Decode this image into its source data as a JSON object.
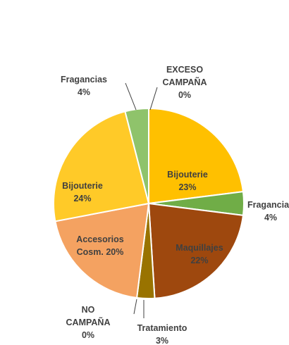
{
  "chart_data": {
    "type": "pie",
    "title": "",
    "slices": [
      {
        "category": "EXCESO CAMPAÑA",
        "percent_label": "0%",
        "value": 0,
        "color": "#FFC000"
      },
      {
        "category": "Bijouterie",
        "percent_label": "23%",
        "value": 23,
        "color": "#FFC000"
      },
      {
        "category": "Fragancias",
        "percent_label": "4%",
        "value": 4,
        "color": "#70AD47"
      },
      {
        "category": "Maquillajes",
        "percent_label": "22%",
        "value": 22,
        "color": "#9E480E"
      },
      {
        "category": "Tratamiento",
        "percent_label": "3%",
        "value": 3,
        "color": "#997300"
      },
      {
        "category": "NO CAMPAÑA",
        "percent_label": "0%",
        "value": 0,
        "color": "#7F7F7F"
      },
      {
        "category": "Accesorios Cosm.",
        "percent_label": "20%",
        "value": 20,
        "color": "#F4A261"
      },
      {
        "category": "Bijouterie",
        "percent_label": "24%",
        "value": 24,
        "color": "#FFCA28"
      },
      {
        "category": "Fragancias",
        "percent_label": "4%",
        "value": 4,
        "color": "#8FC36B"
      }
    ],
    "legend": "none",
    "data_labels": "category and percentage"
  }
}
